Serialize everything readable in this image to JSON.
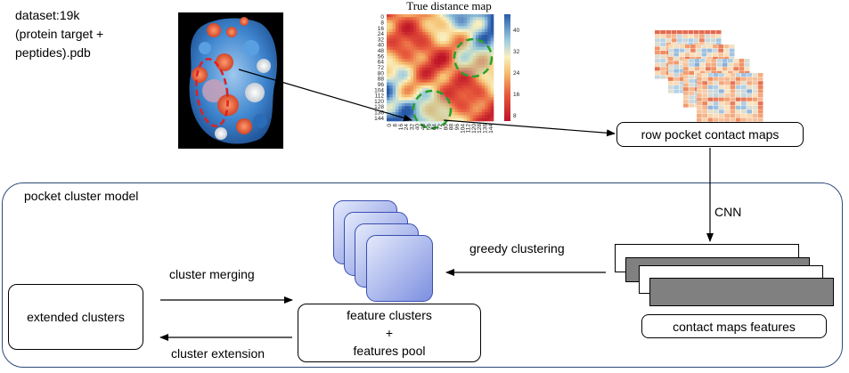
{
  "dataset_label": [
    "dataset:19k",
    "(protein target +",
    "peptides).pdb"
  ],
  "heatmap": {
    "title": "True distance map",
    "y_ticks": [
      "0",
      "8",
      "16",
      "24",
      "32",
      "40",
      "48",
      "56",
      "64",
      "72",
      "80",
      "88",
      "96",
      "104",
      "112",
      "120",
      "128",
      "136",
      "144"
    ],
    "x_ticks": [
      "0",
      "8",
      "16",
      "24",
      "32",
      "40",
      "48",
      "56",
      "64",
      "72",
      "80",
      "88",
      "96",
      "104",
      "112",
      "120",
      "128",
      "136",
      "144"
    ],
    "colorbar_ticks": [
      "40",
      "32",
      "24",
      "16",
      "8"
    ]
  },
  "row_pocket_contact_maps": "row pocket contact maps",
  "cnn_label": "CNN",
  "pocket_cluster_model": "pocket cluster model",
  "greedy_clustering": "greedy clustering",
  "contact_maps_features": "contact maps features",
  "cluster_merging": "cluster merging",
  "cluster_extension": "cluster extension",
  "extended_clusters": "extended clusters",
  "feature_clusters": [
    "feature clusters",
    "+",
    "features pool"
  ],
  "colors": {
    "container_border": "#2e4a78",
    "cluster_fill_light": "#e4e9fb",
    "cluster_fill_dark": "#7c8fe0",
    "feature_card_gray": "#808080",
    "highlight_green": "#2aa02a",
    "highlight_red": "#e02020"
  }
}
